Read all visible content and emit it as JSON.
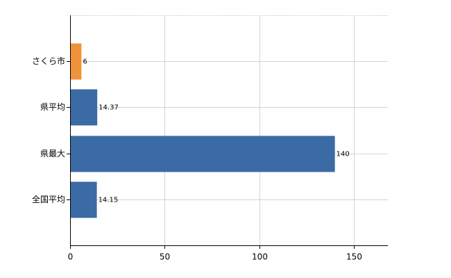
{
  "chart_data": {
    "type": "barh",
    "categories": [
      "さくら市",
      "県平均",
      "県最大",
      "全国平均"
    ],
    "values": [
      6,
      14.37,
      140,
      14.15
    ],
    "colors": [
      "#f0923a",
      "#3b6ba5",
      "#3b6ba5",
      "#3b6ba5"
    ],
    "xlim": [
      0,
      168
    ],
    "xticks": [
      0,
      50,
      100,
      150
    ],
    "grid": true
  }
}
